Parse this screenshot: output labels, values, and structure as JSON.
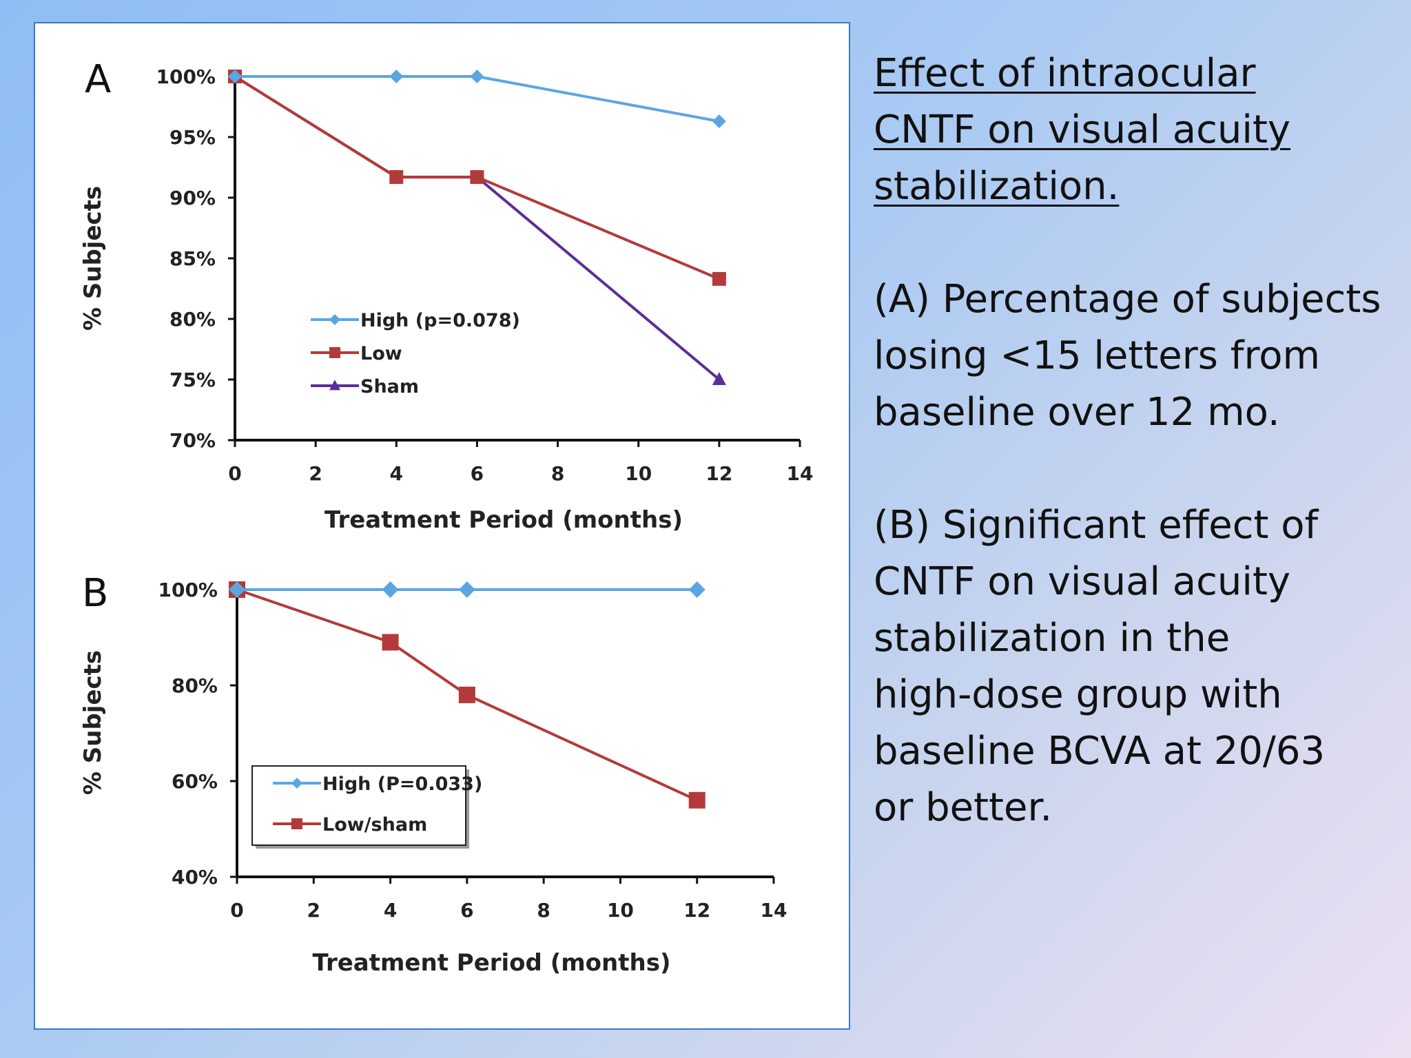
{
  "caption": {
    "heading_lines": [
      "Effect of intraocular",
      "CNTF on visual acuity",
      "stabilization."
    ],
    "paragraph_a_lines": [
      "(A) Percentage of subjects",
      "losing <15 letters from",
      "baseline over 12 mo."
    ],
    "paragraph_b_lines": [
      "(B) Significant effect of",
      "CNTF on visual acuity",
      "stabilization in the",
      "high-dose group with",
      "baseline BCVA at 20/63",
      "or better."
    ]
  },
  "chart_data": [
    {
      "type": "line",
      "panel_label": "A",
      "xlabel": "Treatment Period (months)",
      "ylabel": "% Subjects",
      "xlim": [
        0,
        14
      ],
      "ylim": [
        70,
        100
      ],
      "x_ticks": [
        0,
        2,
        4,
        6,
        8,
        10,
        12,
        14
      ],
      "y_ticks": [
        70,
        75,
        80,
        85,
        90,
        95,
        100
      ],
      "y_tick_labels": [
        "70%",
        "75%",
        "80%",
        "85%",
        "90%",
        "95%",
        "100%"
      ],
      "legend_placement": "inside-center-left",
      "series": [
        {
          "name": "High (p=0.078)",
          "color": "#5ba6e2",
          "marker": "diamond",
          "x": [
            0,
            4,
            6,
            12
          ],
          "values": [
            100,
            100,
            100,
            96.3
          ]
        },
        {
          "name": "Low",
          "color": "#b33a3a",
          "marker": "square",
          "x": [
            0,
            4,
            6,
            12
          ],
          "values": [
            100,
            91.7,
            91.7,
            83.3
          ]
        },
        {
          "name": "Sham",
          "color": "#5a2e96",
          "marker": "triangle",
          "x": [
            0,
            4,
            6,
            12
          ],
          "values": [
            100,
            91.7,
            91.7,
            75
          ]
        }
      ]
    },
    {
      "type": "line",
      "panel_label": "B",
      "xlabel": "Treatment Period (months)",
      "ylabel": "% Subjects",
      "xlim": [
        0,
        14
      ],
      "ylim": [
        40,
        100
      ],
      "x_ticks": [
        0,
        2,
        4,
        6,
        8,
        10,
        12,
        14
      ],
      "y_ticks": [
        40,
        60,
        80,
        100
      ],
      "y_tick_labels": [
        "40%",
        "60%",
        "80%",
        "100%"
      ],
      "legend_placement": "inside-bottom-left",
      "series": [
        {
          "name": "High (P=0.033)",
          "color": "#5ba6e2",
          "marker": "diamond",
          "x": [
            0,
            4,
            6,
            12
          ],
          "values": [
            100,
            100,
            100,
            100
          ]
        },
        {
          "name": "Low/sham",
          "color": "#b33a3a",
          "marker": "square",
          "x": [
            0,
            4,
            6,
            12
          ],
          "values": [
            100,
            89,
            78,
            56
          ]
        }
      ]
    }
  ]
}
